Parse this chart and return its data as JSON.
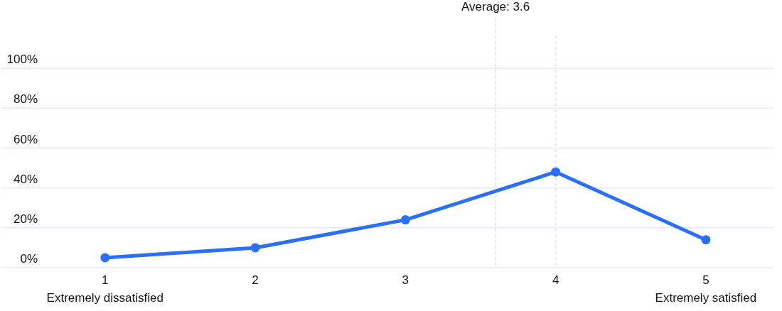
{
  "chart_data": {
    "type": "line",
    "x": [
      1,
      2,
      3,
      4,
      5
    ],
    "series": [
      {
        "color": "#2b6ff6",
        "values": [
          5,
          10,
          24,
          48,
          14
        ]
      }
    ],
    "xlim": [
      0.31,
      5.45
    ],
    "xticks": [
      {
        "value": 1,
        "label": "1\nExtremely dissatisfied"
      },
      2,
      3,
      4,
      {
        "value": 5,
        "label": "5\nExtremely satisfied"
      }
    ],
    "ylim": [
      0,
      125
    ],
    "yticks": [
      {
        "value": 0,
        "label": "0%"
      },
      {
        "value": 20,
        "label": "20%"
      },
      {
        "value": 40,
        "label": "40%"
      },
      {
        "value": 60,
        "label": "60%"
      },
      {
        "value": 80,
        "label": "80%"
      },
      {
        "value": 100,
        "label": "100%"
      }
    ],
    "grid": "y",
    "marker": "circle",
    "line_style": "solid",
    "ref_lines": [
      {
        "axis": "x",
        "value": 3.6,
        "label": "Average: 3.6",
        "color": "#dde1ec",
        "line_style": "dashed"
      },
      {
        "axis": "x",
        "value": 4,
        "label": null,
        "color": "#dde1ec",
        "line_style": "dashed"
      }
    ]
  }
}
